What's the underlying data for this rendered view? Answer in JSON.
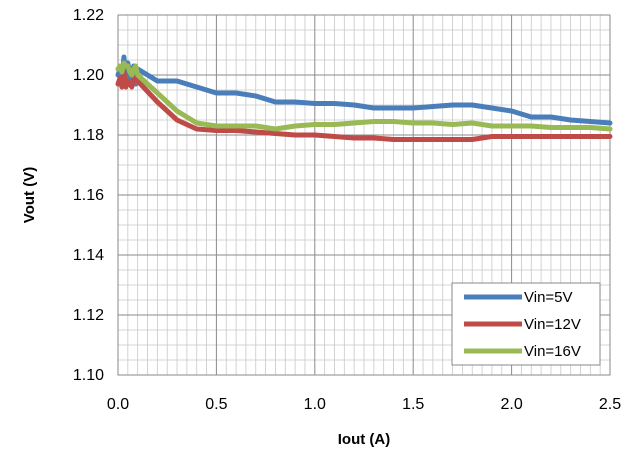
{
  "chart_data": {
    "type": "line",
    "title": "",
    "xlabel": "Iout (A)",
    "ylabel": "Vout (V)",
    "xlim": [
      0,
      2.5
    ],
    "ylim": [
      1.1,
      1.22
    ],
    "x_ticks": [
      "0.0",
      "0.5",
      "1.0",
      "1.5",
      "2.0",
      "2.5"
    ],
    "y_ticks": [
      "1.10",
      "1.12",
      "1.14",
      "1.16",
      "1.18",
      "1.20",
      "1.22"
    ],
    "grid": true,
    "legend_position": "bottom-right",
    "series": [
      {
        "name": "Vin=5V",
        "color": "#4A7EBB",
        "x": [
          0.0,
          0.01,
          0.02,
          0.03,
          0.04,
          0.05,
          0.06,
          0.07,
          0.08,
          0.09,
          0.1,
          0.2,
          0.3,
          0.4,
          0.5,
          0.6,
          0.7,
          0.8,
          0.9,
          1.0,
          1.1,
          1.2,
          1.3,
          1.4,
          1.5,
          1.6,
          1.7,
          1.8,
          1.9,
          2.0,
          2.1,
          2.2,
          2.3,
          2.4,
          2.5
        ],
        "y": [
          1.2,
          1.202,
          1.197,
          1.206,
          1.199,
          1.204,
          1.201,
          1.197,
          1.203,
          1.197,
          1.202,
          1.198,
          1.198,
          1.196,
          1.194,
          1.194,
          1.193,
          1.191,
          1.191,
          1.1905,
          1.1905,
          1.19,
          1.189,
          1.189,
          1.189,
          1.1895,
          1.19,
          1.19,
          1.189,
          1.188,
          1.186,
          1.186,
          1.185,
          1.1845,
          1.184
        ]
      },
      {
        "name": "Vin=12V",
        "color": "#BE4B48",
        "x": [
          0.0,
          0.01,
          0.02,
          0.03,
          0.04,
          0.05,
          0.06,
          0.07,
          0.08,
          0.09,
          0.1,
          0.2,
          0.3,
          0.4,
          0.5,
          0.6,
          0.7,
          0.8,
          0.9,
          1.0,
          1.1,
          1.2,
          1.3,
          1.4,
          1.5,
          1.6,
          1.7,
          1.8,
          1.9,
          2.0,
          2.1,
          2.2,
          2.3,
          2.4,
          2.5
        ],
        "y": [
          1.197,
          1.199,
          1.196,
          1.201,
          1.196,
          1.198,
          1.197,
          1.196,
          1.199,
          1.199,
          1.198,
          1.191,
          1.185,
          1.182,
          1.1815,
          1.1815,
          1.181,
          1.1805,
          1.18,
          1.18,
          1.1795,
          1.179,
          1.179,
          1.1785,
          1.1785,
          1.1785,
          1.1785,
          1.1785,
          1.1795,
          1.1795,
          1.1795,
          1.1795,
          1.1795,
          1.1795,
          1.1795
        ]
      },
      {
        "name": "Vin=16V",
        "color": "#98B954",
        "x": [
          0.0,
          0.01,
          0.02,
          0.03,
          0.04,
          0.05,
          0.06,
          0.07,
          0.08,
          0.09,
          0.1,
          0.2,
          0.3,
          0.4,
          0.5,
          0.6,
          0.7,
          0.8,
          0.9,
          1.0,
          1.1,
          1.2,
          1.3,
          1.4,
          1.5,
          1.6,
          1.7,
          1.8,
          1.9,
          2.0,
          2.1,
          2.2,
          2.3,
          2.4,
          2.5
        ],
        "y": [
          1.202,
          1.203,
          1.201,
          1.204,
          1.203,
          1.203,
          1.201,
          1.2,
          1.202,
          1.203,
          1.2,
          1.194,
          1.188,
          1.184,
          1.183,
          1.183,
          1.183,
          1.182,
          1.183,
          1.1835,
          1.1835,
          1.184,
          1.1845,
          1.1845,
          1.184,
          1.184,
          1.1835,
          1.184,
          1.183,
          1.183,
          1.183,
          1.1825,
          1.1825,
          1.1825,
          1.182
        ]
      }
    ]
  }
}
